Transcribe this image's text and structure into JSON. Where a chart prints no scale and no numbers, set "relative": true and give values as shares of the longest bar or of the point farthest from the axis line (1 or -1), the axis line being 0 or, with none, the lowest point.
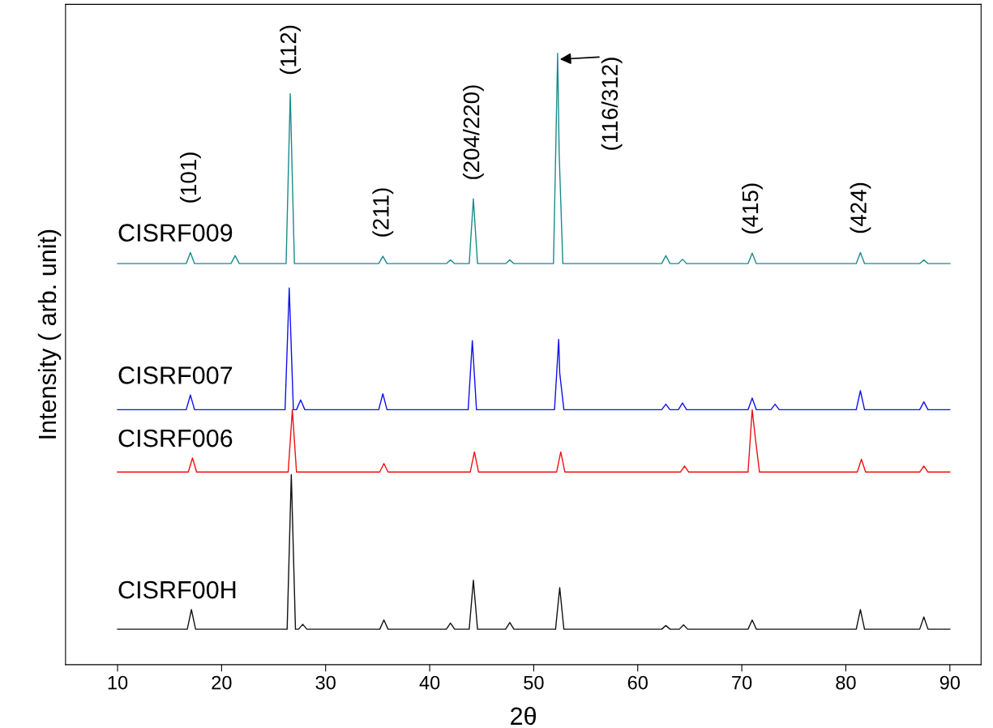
{
  "chart_data": {
    "type": "line",
    "relative": true,
    "xlabel": "2θ",
    "ylabel": "Intensity ( arb. unit)",
    "xlim": [
      5,
      93
    ],
    "xticks": [
      10,
      20,
      30,
      40,
      50,
      60,
      70,
      80,
      90
    ],
    "grid": false,
    "legend": false,
    "marker": "none",
    "line_style": "solid",
    "series": [
      {
        "name": "CISRF009",
        "color": "#1a8a8a",
        "x": [
          10,
          16.6,
          17.0,
          17.4,
          20.9,
          21.3,
          21.7,
          26.2,
          26.6,
          27.0,
          35.1,
          35.5,
          35.9,
          41.6,
          42.0,
          42.4,
          43.8,
          44.2,
          44.6,
          47.3,
          47.7,
          48.1,
          51.9,
          52.3,
          52.45,
          52.8,
          62.3,
          62.7,
          63.1,
          63.9,
          64.3,
          64.7,
          70.6,
          71.0,
          71.4,
          81.0,
          81.4,
          81.8,
          87.1,
          87.5,
          87.9,
          90
        ],
        "values": [
          0.656,
          0.656,
          0.674,
          0.656,
          0.656,
          0.669,
          0.656,
          0.656,
          0.934,
          0.656,
          0.656,
          0.668,
          0.656,
          0.656,
          0.662,
          0.656,
          0.656,
          0.762,
          0.656,
          0.656,
          0.662,
          0.656,
          0.656,
          1.0,
          0.834,
          0.656,
          0.656,
          0.669,
          0.656,
          0.656,
          0.663,
          0.656,
          0.656,
          0.673,
          0.656,
          0.656,
          0.674,
          0.656,
          0.656,
          0.662,
          0.656,
          0.656
        ]
      },
      {
        "name": "CISRF007",
        "color": "#1010ee",
        "x": [
          10,
          16.6,
          17.0,
          17.4,
          26.1,
          26.5,
          26.9,
          27.2,
          27.6,
          28.0,
          35.1,
          35.5,
          35.9,
          43.7,
          44.1,
          44.5,
          52.0,
          52.4,
          52.5,
          52.9,
          62.3,
          62.7,
          63.1,
          63.9,
          64.3,
          64.7,
          70.6,
          71.0,
          71.4,
          72.8,
          73.2,
          73.6,
          81.0,
          81.4,
          81.8,
          87.1,
          87.5,
          87.9,
          90
        ],
        "values": [
          0.417,
          0.417,
          0.441,
          0.417,
          0.417,
          0.616,
          0.417,
          0.417,
          0.433,
          0.417,
          0.417,
          0.443,
          0.417,
          0.417,
          0.53,
          0.417,
          0.417,
          0.532,
          0.477,
          0.417,
          0.417,
          0.426,
          0.417,
          0.417,
          0.428,
          0.417,
          0.417,
          0.436,
          0.417,
          0.417,
          0.426,
          0.417,
          0.417,
          0.448,
          0.417,
          0.417,
          0.43,
          0.417,
          0.417
        ]
      },
      {
        "name": "CISRF006",
        "color": "#ee1010",
        "x": [
          10,
          16.8,
          17.2,
          17.6,
          26.4,
          26.8,
          27.2,
          35.2,
          35.6,
          36.0,
          43.9,
          44.3,
          44.7,
          52.2,
          52.6,
          53.0,
          64.1,
          64.5,
          64.9,
          70.6,
          71.0,
          71.3,
          71.7,
          81.1,
          81.5,
          81.9,
          87.1,
          87.5,
          87.9,
          90
        ],
        "values": [
          0.315,
          0.315,
          0.338,
          0.315,
          0.315,
          0.417,
          0.315,
          0.315,
          0.329,
          0.315,
          0.315,
          0.348,
          0.315,
          0.315,
          0.348,
          0.315,
          0.315,
          0.325,
          0.315,
          0.315,
          0.417,
          0.371,
          0.315,
          0.315,
          0.336,
          0.315,
          0.315,
          0.325,
          0.315,
          0.315
        ]
      },
      {
        "name": "CISRF00H",
        "color": "#111111",
        "x": [
          10,
          16.7,
          17.1,
          17.5,
          26.3,
          26.7,
          27.1,
          27.4,
          27.8,
          28.2,
          35.2,
          35.6,
          36.0,
          41.6,
          42.0,
          42.4,
          43.8,
          44.2,
          44.6,
          47.3,
          47.7,
          48.1,
          52.1,
          52.5,
          52.9,
          62.3,
          62.7,
          63.1,
          64.0,
          64.4,
          64.8,
          70.6,
          71.0,
          71.4,
          81.0,
          81.4,
          81.8,
          87.1,
          87.5,
          87.9,
          90
        ],
        "values": [
          0.058,
          0.058,
          0.09,
          0.058,
          0.058,
          0.311,
          0.058,
          0.058,
          0.066,
          0.058,
          0.058,
          0.073,
          0.058,
          0.058,
          0.068,
          0.058,
          0.058,
          0.138,
          0.058,
          0.058,
          0.069,
          0.058,
          0.058,
          0.126,
          0.058,
          0.058,
          0.064,
          0.058,
          0.058,
          0.065,
          0.058,
          0.058,
          0.073,
          0.058,
          0.058,
          0.09,
          0.058,
          0.058,
          0.078,
          0.058,
          0.058
        ]
      }
    ],
    "annotations": [
      {
        "text": "(101)",
        "x": 17.0,
        "y": 0.674
      },
      {
        "text": "(112)",
        "x": 26.6,
        "y": 0.934
      },
      {
        "text": "(211)",
        "x": 35.5,
        "y": 0.668
      },
      {
        "text": "(204/220)",
        "x": 44.2,
        "y": 0.762
      },
      {
        "text": "(116/312)",
        "x": 52.3,
        "y": 1.0
      },
      {
        "text": "(415)",
        "x": 71.0,
        "y": 0.673
      },
      {
        "text": "(424)",
        "x": 81.4,
        "y": 0.674
      }
    ]
  }
}
